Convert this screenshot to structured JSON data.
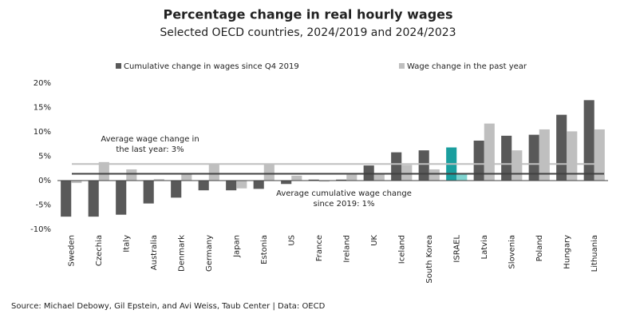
{
  "chart_data": {
    "type": "bar",
    "title": "Percentage change in real hourly wages",
    "subtitle": "Selected OECD countries, 2024/2019 and 2024/2023",
    "categories": [
      "Sweden",
      "Czechia",
      "Italy",
      "Australia",
      "Denmark",
      "Germany",
      "Japan",
      "Estonia",
      "US",
      "France",
      "Ireland",
      "UK",
      "Iceland",
      "South Korea",
      "ISRAEL",
      "Latvia",
      "Slovenia",
      "Poland",
      "Hungary",
      "Lithuania"
    ],
    "series": [
      {
        "name": "Cumulative change in wages since Q4 2019",
        "color": "#595959",
        "highlight_color": "#1a9e9e",
        "values": [
          -7.4,
          -7.4,
          -7.0,
          -4.7,
          -3.5,
          -2.0,
          -2.0,
          -1.7,
          -0.7,
          0.2,
          0.2,
          3.1,
          5.8,
          6.2,
          6.8,
          8.2,
          9.2,
          9.4,
          13.5,
          16.5
        ]
      },
      {
        "name": "Wage change in the past year",
        "color": "#bfbfbf",
        "highlight_color": "#80d4d0",
        "values": [
          -0.5,
          3.8,
          2.3,
          0.3,
          1.4,
          3.5,
          -1.6,
          3.5,
          1.0,
          -0.2,
          1.2,
          1.4,
          3.2,
          2.3,
          1.5,
          11.7,
          6.2,
          10.5,
          10.1,
          10.5
        ]
      }
    ],
    "highlight": "ISRAEL",
    "reference_lines": [
      {
        "value": 3.4,
        "color": "#bfbfbf",
        "label": [
          "Average wage change in",
          "the last year: 3%"
        ]
      },
      {
        "value": 1.4,
        "color": "#404040",
        "label": [
          "Average cumulative wage change",
          "since 2019: 1%"
        ]
      }
    ],
    "ylim": [
      -10,
      20
    ],
    "yticks": [
      {
        "value": -10,
        "label": "-10%"
      },
      {
        "value": -5,
        "label": "-5%"
      },
      {
        "value": 0,
        "label": "0%"
      },
      {
        "value": 5,
        "label": "5%"
      },
      {
        "value": 10,
        "label": "10%"
      },
      {
        "value": 15,
        "label": "15%"
      },
      {
        "value": 20,
        "label": "20%"
      }
    ],
    "source": "Source: Michael Debowy, Gil Epstein, and Avi Weiss, Taub Center | Data: OECD"
  }
}
